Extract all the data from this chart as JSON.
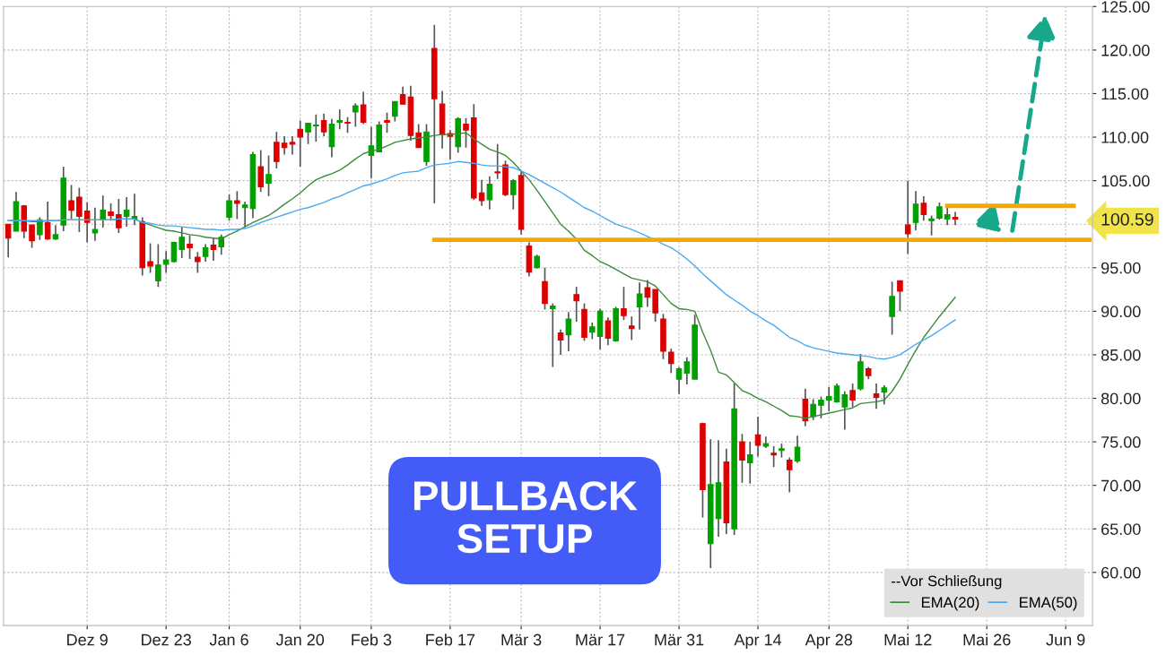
{
  "chart_data": {
    "type": "candlestick",
    "categories": [
      null,
      null,
      null,
      null,
      null,
      null,
      null,
      null,
      null,
      null,
      "Dez 9",
      null,
      null,
      null,
      null,
      null,
      null,
      null,
      null,
      null,
      "Dez 23",
      null,
      null,
      null,
      null,
      null,
      null,
      null,
      "Jan 6",
      null,
      null,
      null,
      null,
      null,
      null,
      null,
      null,
      "Jan 20",
      null,
      null,
      null,
      null,
      null,
      null,
      null,
      null,
      "Feb 3",
      null,
      null,
      null,
      null,
      null,
      null,
      null,
      null,
      null,
      "Feb 17",
      null,
      null,
      null,
      null,
      null,
      null,
      null,
      null,
      "Mär 3",
      null,
      null,
      null,
      null,
      null,
      null,
      null,
      null,
      null,
      "Mär 17",
      null,
      null,
      null,
      null,
      null,
      null,
      null,
      null,
      null,
      "Mär 31",
      null,
      null,
      null,
      null,
      null,
      null,
      null,
      null,
      null,
      "Apr 14",
      null,
      null,
      null,
      null,
      null,
      null,
      null,
      null,
      "Apr 28",
      null,
      null,
      null,
      null,
      null,
      null,
      null,
      null,
      null,
      "Mai 12",
      null,
      null,
      null,
      null,
      null,
      null,
      null,
      null,
      null,
      "Mai 26",
      null,
      null,
      null,
      null,
      null,
      null,
      null,
      null,
      null,
      "Jun 9",
      null,
      null,
      null
    ],
    "ohlc": [
      [
        100.0,
        100.0,
        96.2,
        98.4
      ],
      [
        99.2,
        103.7,
        99.2,
        102.6
      ],
      [
        102.1,
        102.2,
        98.4,
        99.2
      ],
      [
        99.9,
        99.9,
        97.3,
        98.1
      ],
      [
        98.8,
        100.8,
        98.2,
        100.5
      ],
      [
        100.2,
        102.6,
        98.2,
        98.3
      ],
      [
        98.3,
        99.9,
        98.2,
        98.8
      ],
      [
        99.9,
        106.6,
        99.2,
        105.3
      ],
      [
        102.7,
        104.5,
        100.6,
        101.6
      ],
      [
        103.1,
        104.2,
        99.1,
        100.9
      ],
      [
        101.5,
        102.5,
        97.9,
        100.2
      ],
      [
        99.0,
        101.9,
        98.1,
        99.4
      ],
      [
        100.5,
        103.3,
        99.6,
        101.6
      ],
      [
        101.4,
        102.4,
        100.4,
        101.0
      ],
      [
        101.1,
        102.9,
        99.0,
        99.6
      ],
      [
        100.9,
        103.1,
        99.7,
        101.6
      ],
      [
        100.6,
        103.5,
        99.9,
        100.9
      ],
      [
        100.3,
        100.8,
        94.1,
        95.0
      ],
      [
        95.7,
        97.8,
        94.4,
        95.2
      ],
      [
        93.5,
        97.7,
        92.8,
        95.3
      ],
      [
        95.4,
        96.9,
        94.4,
        95.9
      ],
      [
        95.7,
        98.0,
        95.6,
        97.9
      ],
      [
        97.1,
        99.7,
        96.1,
        98.5
      ],
      [
        97.7,
        98.7,
        96.0,
        97.3
      ],
      [
        96.2,
        96.8,
        94.4,
        95.7
      ],
      [
        96.3,
        97.7,
        95.7,
        97.3
      ],
      [
        97.6,
        98.4,
        95.8,
        97.1
      ],
      [
        97.4,
        98.8,
        96.5,
        98.5
      ],
      [
        100.8,
        103.4,
        100.4,
        102.7
      ],
      [
        102.7,
        103.8,
        100.6,
        102.4
      ],
      [
        101.9,
        102.6,
        99.7,
        102.2
      ],
      [
        101.8,
        108.3,
        100.7,
        108.0
      ],
      [
        106.6,
        108.5,
        103.7,
        104.3
      ],
      [
        104.7,
        107.9,
        103.2,
        105.7
      ],
      [
        109.4,
        110.6,
        106.4,
        107.2
      ],
      [
        109.3,
        110.1,
        108.0,
        108.8
      ],
      [
        109.4,
        110.1,
        108.0,
        109.2
      ],
      [
        110.9,
        111.9,
        106.6,
        110.0
      ],
      [
        110.6,
        111.6,
        109.2,
        111.6
      ],
      [
        111.3,
        112.6,
        109.5,
        111.4
      ],
      [
        111.9,
        112.7,
        110.1,
        110.6
      ],
      [
        108.9,
        112.1,
        107.7,
        111.5
      ],
      [
        111.7,
        113.2,
        110.9,
        111.9
      ],
      [
        111.7,
        112.3,
        110.5,
        111.6
      ],
      [
        112.9,
        113.9,
        111.2,
        113.6
      ],
      [
        113.7,
        115.2,
        111.5,
        111.7
      ],
      [
        107.9,
        111.2,
        105.3,
        109.0
      ],
      [
        108.3,
        111.8,
        108.3,
        111.4
      ],
      [
        111.9,
        112.8,
        110.5,
        111.7
      ],
      [
        112.4,
        114.1,
        111.8,
        114.1
      ],
      [
        114.9,
        115.8,
        113.8,
        113.8
      ],
      [
        114.6,
        115.9,
        109.6,
        110.2
      ],
      [
        110.5,
        111.5,
        108.8,
        108.8
      ],
      [
        107.2,
        111.5,
        106.7,
        110.6
      ],
      [
        120.2,
        122.9,
        102.4,
        114.4
      ],
      [
        113.8,
        115.3,
        108.7,
        110.3
      ],
      [
        110.4,
        110.8,
        107.4,
        110.1
      ],
      [
        108.9,
        112.3,
        108.2,
        112.1
      ],
      [
        111.5,
        112.2,
        108.8,
        110.8
      ],
      [
        112.2,
        113.8,
        102.8,
        103.0
      ],
      [
        103.6,
        105.1,
        102.1,
        102.7
      ],
      [
        102.8,
        105.5,
        101.7,
        104.6
      ],
      [
        106.0,
        109.2,
        105.2,
        105.9
      ],
      [
        106.8,
        107.3,
        103.2,
        103.4
      ],
      [
        103.4,
        105.2,
        101.7,
        105.0
      ],
      [
        105.6,
        106.1,
        98.8,
        99.4
      ],
      [
        97.5,
        97.9,
        94.0,
        94.5
      ],
      [
        95.0,
        96.5,
        94.9,
        96.3
      ],
      [
        93.4,
        95.0,
        90.2,
        90.9
      ],
      [
        90.3,
        90.9,
        83.6,
        90.6
      ],
      [
        87.5,
        87.9,
        85.0,
        86.7
      ],
      [
        87.3,
        89.9,
        85.4,
        89.1
      ],
      [
        91.9,
        92.8,
        88.8,
        91.2
      ],
      [
        90.2,
        90.9,
        86.6,
        87.0
      ],
      [
        87.6,
        88.7,
        86.8,
        88.2
      ],
      [
        87.1,
        90.3,
        85.6,
        90.0
      ],
      [
        88.9,
        89.3,
        86.1,
        86.9
      ],
      [
        86.6,
        90.5,
        86.5,
        90.3
      ],
      [
        90.3,
        92.8,
        89.0,
        89.5
      ],
      [
        88.3,
        89.4,
        86.7,
        88.0
      ],
      [
        90.5,
        93.3,
        87.9,
        92.0
      ],
      [
        92.7,
        93.6,
        90.5,
        91.6
      ],
      [
        92.5,
        92.5,
        88.8,
        89.8
      ],
      [
        89.1,
        89.7,
        84.5,
        85.4
      ],
      [
        85.3,
        85.7,
        82.9,
        84.0
      ],
      [
        82.2,
        83.6,
        80.5,
        83.4
      ],
      [
        82.9,
        84.7,
        81.6,
        84.2
      ],
      [
        82.2,
        89.6,
        82.2,
        88.4
      ],
      [
        77.1,
        77.2,
        66.3,
        69.5
      ],
      [
        63.3,
        75.3,
        60.5,
        70.1
      ],
      [
        66.2,
        75.2,
        64.1,
        70.3
      ],
      [
        72.7,
        74.2,
        64.4,
        65.7
      ],
      [
        65.0,
        81.7,
        64.3,
        78.8
      ],
      [
        75.0,
        75.9,
        70.3,
        72.9
      ],
      [
        72.6,
        75.0,
        70.2,
        73.5
      ],
      [
        75.8,
        77.9,
        73.3,
        74.6
      ],
      [
        74.5,
        75.6,
        74.3,
        74.8
      ],
      [
        73.7,
        74.5,
        72.1,
        73.5
      ],
      [
        74.0,
        74.8,
        73.2,
        74.2
      ],
      [
        72.9,
        73.2,
        69.2,
        71.8
      ],
      [
        72.8,
        75.7,
        72.6,
        74.4
      ],
      [
        79.9,
        81.1,
        76.8,
        77.4
      ],
      [
        77.9,
        79.9,
        77.5,
        79.3
      ],
      [
        79.2,
        80.2,
        77.7,
        79.8
      ],
      [
        79.8,
        81.3,
        78.5,
        80.2
      ],
      [
        79.6,
        81.7,
        79.5,
        81.4
      ],
      [
        79.0,
        80.8,
        76.4,
        80.4
      ],
      [
        80.9,
        81.7,
        79.0,
        79.8
      ],
      [
        81.1,
        85.1,
        80.9,
        84.2
      ],
      [
        83.4,
        83.6,
        82.2,
        82.6
      ],
      [
        80.5,
        81.7,
        78.8,
        80.1
      ],
      [
        80.7,
        81.5,
        79.3,
        81.2
      ],
      [
        89.4,
        93.4,
        87.3,
        91.7
      ],
      [
        93.5,
        93.5,
        90.0,
        92.3
      ],
      [
        99.9,
        105.0,
        96.6,
        98.9
      ],
      [
        100.2,
        103.8,
        99.3,
        102.3
      ],
      [
        102.4,
        103.2,
        100.4,
        101.1
      ],
      [
        100.4,
        101.0,
        98.7,
        100.6
      ],
      [
        100.7,
        102.5,
        100.5,
        102.0
      ],
      [
        100.6,
        102.1,
        99.9,
        101.1
      ],
      [
        100.8,
        101.4,
        99.9,
        100.6
      ],
      null,
      null,
      null,
      null,
      null,
      null,
      null,
      null,
      null,
      null,
      null,
      null,
      null,
      null,
      null,
      null,
      null
    ],
    "colors": [
      "#dd0000",
      "#00a000",
      "#dd0000",
      "#dd0000",
      "#00a000",
      "#dd0000",
      "#00a000",
      "#00a000",
      "#dd0000",
      "#dd0000",
      "#dd0000",
      "#00a000",
      "#00a000",
      "#dd0000",
      "#dd0000",
      "#00a000",
      "#00a000",
      "#dd0000",
      "#dd0000",
      "#00a000",
      "#00a000",
      "#00a000",
      "#00a000",
      "#dd0000",
      "#dd0000",
      "#00a000",
      "#dd0000",
      "#00a000",
      "#00a000",
      "#dd0000",
      "#00a000",
      "#00a000",
      "#dd0000",
      "#00a000",
      "#dd0000",
      "#dd0000",
      "#dd0000",
      "#dd0000",
      "#00a000",
      "#00a000",
      "#dd0000",
      "#00a000",
      "#00a000",
      "#dd0000",
      "#00a000",
      "#dd0000",
      "#00a000",
      "#00a000",
      "#dd0000",
      "#00a000",
      "#dd0000",
      "#dd0000",
      "#dd0000",
      "#00a000",
      "#dd0000",
      "#dd0000",
      "#dd0000",
      "#00a000",
      "#dd0000",
      "#dd0000",
      "#dd0000",
      "#00a000",
      "#dd0000",
      "#dd0000",
      "#00a000",
      "#dd0000",
      "#dd0000",
      "#00a000",
      "#dd0000",
      "#00a000",
      "#dd0000",
      "#00a000",
      "#dd0000",
      "#dd0000",
      "#00a000",
      "#00a000",
      "#dd0000",
      "#00a000",
      "#dd0000",
      "#dd0000",
      "#00a000",
      "#dd0000",
      "#dd0000",
      "#dd0000",
      "#dd0000",
      "#00a000",
      "#00a000",
      "#00a000",
      "#dd0000",
      "#00a000",
      "#00a000",
      "#dd0000",
      "#00a000",
      "#dd0000",
      "#00a000",
      "#dd0000",
      "#00a000",
      "#dd0000",
      "#00a000",
      "#dd0000",
      "#00a000",
      "#dd0000",
      "#00a000",
      "#00a000",
      "#00a000",
      "#00a000",
      "#00a000",
      "#dd0000",
      "#00a000",
      "#dd0000",
      "#dd0000",
      "#00a000",
      "#00a000",
      "#dd0000",
      "#dd0000",
      "#00a000",
      "#dd0000",
      "#00a000",
      "#00a000",
      "#00a000",
      "#dd0000",
      null,
      null,
      null,
      null,
      null,
      null,
      null,
      null,
      null,
      null,
      null,
      null,
      null,
      null,
      null,
      null,
      null
    ],
    "series": [
      {
        "type": "line",
        "name": "EMA(20)",
        "color": "#3c8a3c",
        "line_style": "solid",
        "values": [
          100.4,
          100.4,
          100.4,
          100.3,
          100.3,
          100.4,
          100.4,
          100.5,
          100.5,
          100.5,
          100.5,
          100.5,
          100.5,
          100.5,
          100.6,
          100.6,
          100.6,
          100.2,
          99.9,
          99.6,
          99.3,
          99.2,
          99.0,
          98.8,
          98.7,
          98.5,
          98.4,
          98.3,
          98.8,
          99.2,
          99.7,
          100.2,
          100.6,
          101.0,
          101.6,
          102.3,
          102.9,
          103.6,
          104.4,
          105.1,
          105.5,
          105.8,
          106.2,
          106.8,
          107.5,
          108.1,
          108.4,
          108.6,
          109.0,
          109.4,
          109.6,
          109.8,
          109.9,
          110.0,
          110.2,
          110.3,
          110.3,
          110.4,
          110.5,
          109.8,
          109.2,
          108.6,
          108.3,
          107.9,
          107.1,
          106.1,
          105.1,
          103.9,
          102.6,
          101.3,
          100.0,
          99.2,
          98.3,
          97.0,
          96.4,
          95.7,
          95.3,
          94.8,
          94.3,
          93.8,
          93.6,
          93.4,
          92.9,
          91.9,
          90.9,
          90.3,
          90.2,
          90.0,
          87.6,
          85.5,
          83.0,
          82.7,
          81.8,
          80.9,
          80.5,
          80.0,
          79.6,
          79.1,
          78.6,
          78.0,
          77.9,
          77.7,
          77.9,
          78.1,
          78.3,
          78.5,
          78.7,
          78.9,
          79.4,
          79.5,
          79.6,
          79.8,
          80.8,
          82.2,
          83.9,
          85.5,
          87.0,
          88.2,
          89.4,
          90.5,
          91.6,
          null,
          null,
          null,
          null,
          null,
          null,
          null,
          null,
          null,
          null,
          null,
          null,
          null,
          null,
          null,
          null,
          null
        ]
      },
      {
        "type": "line",
        "name": "EMA(50)",
        "color": "#4aaaf0",
        "line_style": "solid",
        "values": [
          100.4,
          100.4,
          100.4,
          100.4,
          100.4,
          100.4,
          100.4,
          100.5,
          100.5,
          100.5,
          100.5,
          100.5,
          100.5,
          100.5,
          100.6,
          100.6,
          100.6,
          100.2,
          100.1,
          99.9,
          99.8,
          99.8,
          99.7,
          99.6,
          99.5,
          99.4,
          99.4,
          99.3,
          99.4,
          99.4,
          99.5,
          99.8,
          100.2,
          100.5,
          100.8,
          101.1,
          101.4,
          101.7,
          101.9,
          102.2,
          102.5,
          102.9,
          103.2,
          103.6,
          104.0,
          104.4,
          104.6,
          104.9,
          105.2,
          105.6,
          105.9,
          106.0,
          106.1,
          106.5,
          106.8,
          106.9,
          107.0,
          107.2,
          107.1,
          107.0,
          106.8,
          106.7,
          106.7,
          106.6,
          106.5,
          106.1,
          105.7,
          105.2,
          104.7,
          104.2,
          103.7,
          103.1,
          102.5,
          101.9,
          101.5,
          101.0,
          100.5,
          100.0,
          99.7,
          99.4,
          99.0,
          98.6,
          98.2,
          97.7,
          97.3,
          96.7,
          96.0,
          95.2,
          94.3,
          93.5,
          92.7,
          91.9,
          91.3,
          90.7,
          90.0,
          89.5,
          88.9,
          88.4,
          87.7,
          87.0,
          86.6,
          86.1,
          85.8,
          85.6,
          85.4,
          85.2,
          85.1,
          85.0,
          84.9,
          84.8,
          84.6,
          84.5,
          84.7,
          85.0,
          85.6,
          86.2,
          86.7,
          87.2,
          87.8,
          88.4,
          89.0,
          null,
          null,
          null,
          null,
          null,
          null,
          null,
          null,
          null,
          null,
          null,
          null,
          null,
          null,
          null,
          null,
          null
        ]
      },
      {
        "type": "line",
        "color": "#f5a800",
        "line_style": "solid",
        "values": [
          null,
          null,
          null,
          null,
          null,
          null,
          null,
          null,
          null,
          null,
          null,
          null,
          null,
          null,
          null,
          null,
          null,
          null,
          null,
          null,
          null,
          null,
          null,
          null,
          null,
          null,
          null,
          null,
          null,
          null,
          null,
          null,
          null,
          null,
          null,
          null,
          null,
          null,
          null,
          null,
          null,
          null,
          null,
          null,
          null,
          null,
          null,
          null,
          null,
          null,
          null,
          null,
          null,
          null,
          98.2,
          98.2,
          98.2,
          98.2,
          98.2,
          98.2,
          98.2,
          98.2,
          98.2,
          98.2,
          98.2,
          98.2,
          98.2,
          98.2,
          98.2,
          98.2,
          98.2,
          98.2,
          98.2,
          98.2,
          98.2,
          98.2,
          98.2,
          98.2,
          98.2,
          98.2,
          98.2,
          98.2,
          98.2,
          98.2,
          98.2,
          98.2,
          98.2,
          98.2,
          98.2,
          98.2,
          98.2,
          98.2,
          98.2,
          98.2,
          98.2,
          98.2,
          98.2,
          98.2,
          98.2,
          98.2,
          98.2,
          98.2,
          98.2,
          98.2,
          98.2,
          98.2,
          98.2,
          98.2,
          98.2,
          98.2,
          98.2,
          98.2,
          98.2,
          98.2,
          98.2,
          98.2,
          98.2,
          98.2,
          98.2,
          98.2,
          98.2,
          98.2,
          98.2,
          98.2,
          98.2,
          98.2,
          98.2,
          98.2,
          98.2,
          98.2,
          98.2,
          98.2,
          98.2,
          98.2,
          98.2,
          98.2,
          98.2,
          98.2
        ]
      },
      {
        "type": "line",
        "color": "#f5a800",
        "line_style": "solid",
        "values": [
          null,
          null,
          null,
          null,
          null,
          null,
          null,
          null,
          null,
          null,
          null,
          null,
          null,
          null,
          null,
          null,
          null,
          null,
          null,
          null,
          null,
          null,
          null,
          null,
          null,
          null,
          null,
          null,
          null,
          null,
          null,
          null,
          null,
          null,
          null,
          null,
          null,
          null,
          null,
          null,
          null,
          null,
          null,
          null,
          null,
          null,
          null,
          null,
          null,
          null,
          null,
          null,
          null,
          null,
          null,
          null,
          null,
          null,
          null,
          null,
          null,
          null,
          null,
          null,
          null,
          null,
          null,
          null,
          null,
          null,
          null,
          null,
          null,
          null,
          null,
          null,
          null,
          null,
          null,
          null,
          null,
          null,
          null,
          null,
          null,
          null,
          null,
          null,
          null,
          null,
          null,
          null,
          null,
          null,
          null,
          null,
          null,
          null,
          null,
          null,
          null,
          null,
          null,
          null,
          null,
          null,
          null,
          null,
          null,
          null,
          null,
          null,
          null,
          null,
          null,
          null,
          null,
          null,
          null,
          102.1,
          102.1,
          102.1,
          102.1,
          102.1,
          102.1,
          102.1,
          102.1,
          102.1,
          102.1,
          102.1,
          102.1,
          102.1,
          102.1,
          102.1,
          102.1,
          102.1,
          null,
          null
        ]
      }
    ],
    "ylim": [
      53.9,
      125.0
    ],
    "yticks": [
      {
        "value": 60,
        "label": "60.00"
      },
      {
        "value": 65,
        "label": "65.00"
      },
      {
        "value": 70,
        "label": "70.00"
      },
      {
        "value": 75,
        "label": "75.00"
      },
      {
        "value": 80,
        "label": "80.00"
      },
      {
        "value": 85,
        "label": "85.00"
      },
      {
        "value": 90,
        "label": "90.00"
      },
      {
        "value": 95,
        "label": "95.00"
      },
      {
        "value": 100,
        "label": null
      },
      {
        "value": 100.59,
        "label": "100.59"
      },
      {
        "value": 105,
        "label": "105.00"
      },
      {
        "value": 110,
        "label": "110.00"
      },
      {
        "value": 115,
        "label": "115.00"
      },
      {
        "value": 120,
        "label": "120.00"
      },
      {
        "value": 125,
        "label": "125.00"
      }
    ],
    "grid": true,
    "legend": "bottom right",
    "legend_title": "--Vor Schließung",
    "annotations": [
      "PULLBACK\nSETUP"
    ]
  }
}
